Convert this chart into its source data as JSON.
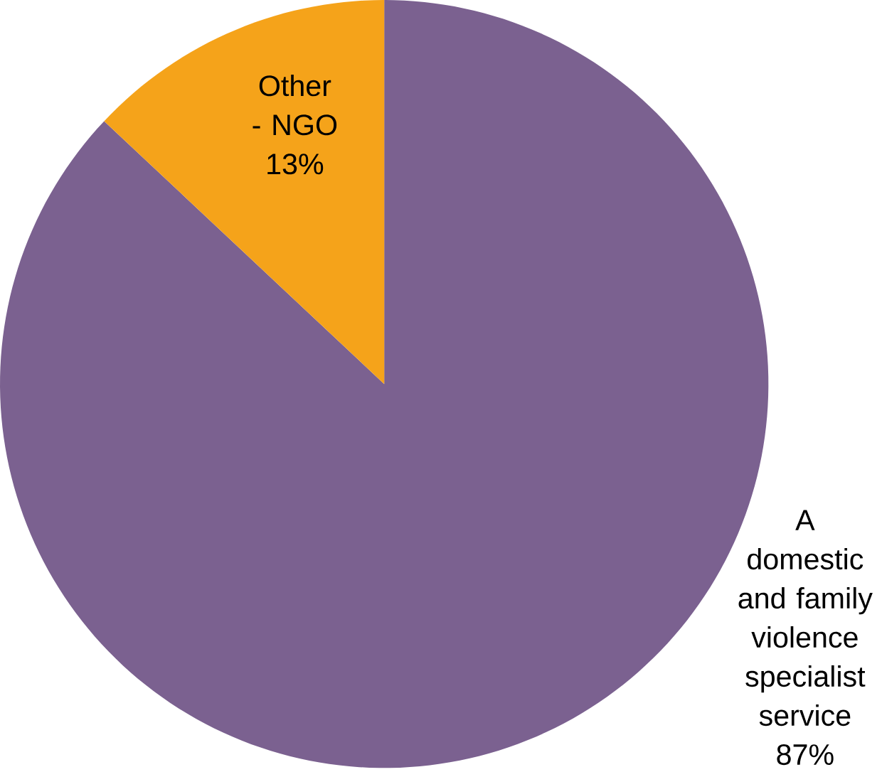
{
  "chart_data": {
    "type": "pie",
    "categories": [
      "A domestic and family violence specialist service",
      "Other - NGO"
    ],
    "values": [
      87,
      13
    ],
    "value_labels": [
      "87%",
      "13%"
    ],
    "colors": [
      "#7b6190",
      "#f5a31a"
    ]
  }
}
